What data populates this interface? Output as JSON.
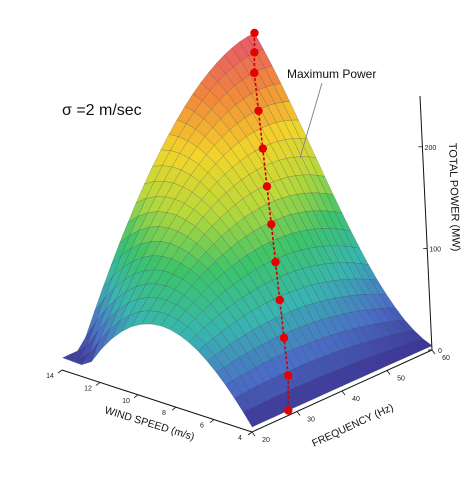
{
  "chart_data": {
    "type": "surface3d",
    "sigma_label": "σ =2 m/sec",
    "annotation": "Maximum Power",
    "axes": {
      "x": {
        "label": "WIND SPEED (m/s)",
        "ticks": [
          14,
          12,
          10,
          8,
          6,
          4
        ],
        "range": [
          4,
          14
        ]
      },
      "y": {
        "label": "FREQUENCY (Hz)",
        "ticks": [
          20,
          30,
          40,
          50,
          60
        ],
        "range": [
          20,
          60
        ]
      },
      "z": {
        "label": "TOTAL POWER (MW)",
        "ticks": [
          0,
          100,
          200
        ],
        "range": [
          0,
          250
        ]
      }
    },
    "max_power_curve": {
      "wind_speed": [
        14,
        13.5,
        13,
        12,
        11,
        10,
        9,
        8,
        7,
        6,
        5,
        4
      ],
      "frequency": [
        60,
        58,
        56,
        53,
        50,
        47,
        44,
        41,
        38,
        35,
        32,
        28
      ],
      "power_mw": [
        250,
        238,
        225,
        200,
        175,
        150,
        125,
        100,
        75,
        50,
        25,
        5
      ]
    },
    "colormap": [
      "#3b2a8c",
      "#4a6fc7",
      "#38b6b0",
      "#3cc46a",
      "#b8d83a",
      "#f2d52a",
      "#f28a3a",
      "#e8566a"
    ]
  }
}
